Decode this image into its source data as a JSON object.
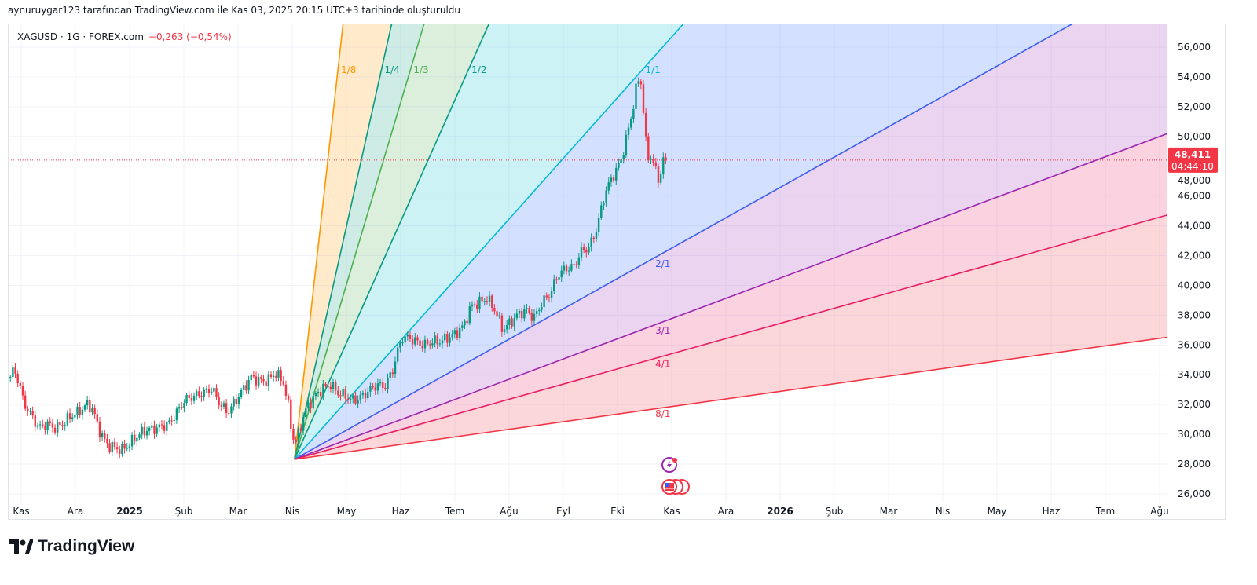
{
  "header": {
    "credit": "aynuruygar123 tarafından TradingView.com ile Kas 03, 2025 20:15 UTC+3 tarihinde oluşturuldu"
  },
  "legend": {
    "symbol": "XAGUSD · 1G · FOREX.com",
    "change": "−0,263 (−0,54%)"
  },
  "price_badge": {
    "price": "48,411",
    "countdown": "04:44:10",
    "color": "#f23645"
  },
  "logo": {
    "text": "TradingView"
  },
  "chart_data": {
    "type": "candlestick",
    "symbol": "XAGUSD",
    "interval": "1G",
    "y_unit": "thousands",
    "ylim": [
      24.4,
      57.6
    ],
    "y_ticks": [
      26,
      28,
      30,
      32,
      34,
      36,
      38,
      40,
      42,
      44,
      46,
      48,
      50,
      52,
      54,
      56
    ],
    "y_tick_labels": [
      "26,000",
      "28,000",
      "30,000",
      "32,000",
      "34,000",
      "36,000",
      "38,000",
      "40,000",
      "42,000",
      "44,000",
      "46,000",
      "48,000",
      "50,000",
      "52,000",
      "54,000",
      "56,000"
    ],
    "x_unit": "months since Kas 2024",
    "x_ticks": [
      "Kas",
      "Ara",
      "2025",
      "Şub",
      "Mar",
      "Nis",
      "May",
      "Haz",
      "Tem",
      "Ağu",
      "Eyl",
      "Eki",
      "Kas",
      "Ara",
      "2026",
      "Şub",
      "Mar",
      "Nis",
      "May",
      "Haz",
      "Tem",
      "Ağu"
    ],
    "last_price": 48.411,
    "close_path": [
      [
        -0.2,
        33.85
      ],
      [
        -0.13,
        34.38
      ],
      [
        -0.03,
        33.33
      ],
      [
        0.04,
        32.17
      ],
      [
        0.19,
        31.22
      ],
      [
        0.33,
        30.43
      ],
      [
        0.48,
        30.69
      ],
      [
        0.62,
        30.43
      ],
      [
        0.77,
        30.69
      ],
      [
        0.91,
        31.22
      ],
      [
        1.06,
        31.48
      ],
      [
        1.2,
        32.01
      ],
      [
        1.32,
        31.74
      ],
      [
        1.42,
        30.43
      ],
      [
        1.57,
        29.37
      ],
      [
        1.71,
        29.11
      ],
      [
        1.86,
        28.95
      ],
      [
        2.0,
        29.37
      ],
      [
        2.14,
        29.9
      ],
      [
        2.29,
        30.27
      ],
      [
        2.51,
        30.43
      ],
      [
        2.72,
        30.69
      ],
      [
        2.87,
        31.48
      ],
      [
        3.01,
        32.27
      ],
      [
        3.16,
        32.53
      ],
      [
        3.38,
        32.8
      ],
      [
        3.52,
        33.06
      ],
      [
        3.67,
        32.01
      ],
      [
        3.81,
        31.48
      ],
      [
        3.96,
        32.27
      ],
      [
        4.1,
        33.06
      ],
      [
        4.25,
        33.85
      ],
      [
        4.39,
        33.59
      ],
      [
        4.54,
        33.59
      ],
      [
        4.68,
        34.12
      ],
      [
        4.83,
        33.59
      ],
      [
        4.94,
        31.74
      ],
      [
        5.0,
        29.9
      ],
      [
        5.06,
        29.37
      ],
      [
        5.14,
        30.43
      ],
      [
        5.26,
        31.74
      ],
      [
        5.41,
        32.53
      ],
      [
        5.55,
        33.06
      ],
      [
        5.7,
        33.33
      ],
      [
        5.84,
        32.8
      ],
      [
        5.99,
        32.53
      ],
      [
        6.13,
        32.27
      ],
      [
        6.28,
        32.53
      ],
      [
        6.42,
        32.96
      ],
      [
        6.57,
        33.33
      ],
      [
        6.71,
        33.22
      ],
      [
        6.86,
        34.38
      ],
      [
        6.93,
        35.44
      ],
      [
        7.03,
        36.49
      ],
      [
        7.14,
        36.49
      ],
      [
        7.29,
        36.23
      ],
      [
        7.43,
        35.96
      ],
      [
        7.58,
        36.23
      ],
      [
        7.72,
        36.23
      ],
      [
        7.87,
        36.49
      ],
      [
        8.01,
        36.75
      ],
      [
        8.16,
        37.28
      ],
      [
        8.3,
        38.6
      ],
      [
        8.45,
        38.86
      ],
      [
        8.59,
        39.13
      ],
      [
        8.74,
        38.34
      ],
      [
        8.88,
        37.02
      ],
      [
        9.03,
        37.54
      ],
      [
        9.17,
        38.07
      ],
      [
        9.32,
        38.34
      ],
      [
        9.46,
        37.81
      ],
      [
        9.61,
        38.86
      ],
      [
        9.75,
        39.39
      ],
      [
        9.9,
        40.71
      ],
      [
        10.04,
        41.13
      ],
      [
        10.19,
        41.24
      ],
      [
        10.33,
        42.29
      ],
      [
        10.48,
        42.55
      ],
      [
        10.62,
        43.87
      ],
      [
        10.77,
        46.24
      ],
      [
        10.91,
        47.3
      ],
      [
        11.06,
        48.35
      ],
      [
        11.2,
        50.46
      ],
      [
        11.28,
        51.78
      ],
      [
        11.35,
        53.36
      ],
      [
        11.42,
        54.15
      ],
      [
        11.49,
        51.25
      ],
      [
        11.52,
        49.67
      ],
      [
        11.57,
        48.62
      ],
      [
        11.64,
        48.62
      ],
      [
        11.71,
        47.56
      ],
      [
        11.78,
        47.04
      ],
      [
        11.86,
        48.88
      ],
      [
        11.93,
        48.41
      ]
    ],
    "gann_fan": {
      "origin": [
        5.04,
        28.32
      ],
      "unit_slope_per_month": 4.075,
      "lines": [
        {
          "label": "1/8",
          "ratio": 8,
          "color": "#ff9800"
        },
        {
          "label": "1/4",
          "ratio": 4,
          "color": "#089981"
        },
        {
          "label": "1/3",
          "ratio": 3,
          "color": "#4caf50"
        },
        {
          "label": "1/2",
          "ratio": 2,
          "color": "#089981"
        },
        {
          "label": "1/1",
          "ratio": 1,
          "color": "#00bcd4"
        },
        {
          "label": "2/1",
          "ratio": 0.5,
          "color": "#3f5ff0"
        },
        {
          "label": "3/1",
          "ratio": 0.3333,
          "color": "#9c27b0"
        },
        {
          "label": "4/1",
          "ratio": 0.25,
          "color": "#e91e63"
        },
        {
          "label": "8/1",
          "ratio": 0.125,
          "color": "#f23645"
        }
      ],
      "fills": [
        "#ff9800",
        "#089981",
        "#4caf50",
        "#00bcd4",
        "#2962ff",
        "#9c27b0",
        "#e91e63",
        "#f23645"
      ]
    },
    "colors": {
      "up": "#089981",
      "down": "#f23645",
      "grid": "#f0f3fa"
    }
  }
}
